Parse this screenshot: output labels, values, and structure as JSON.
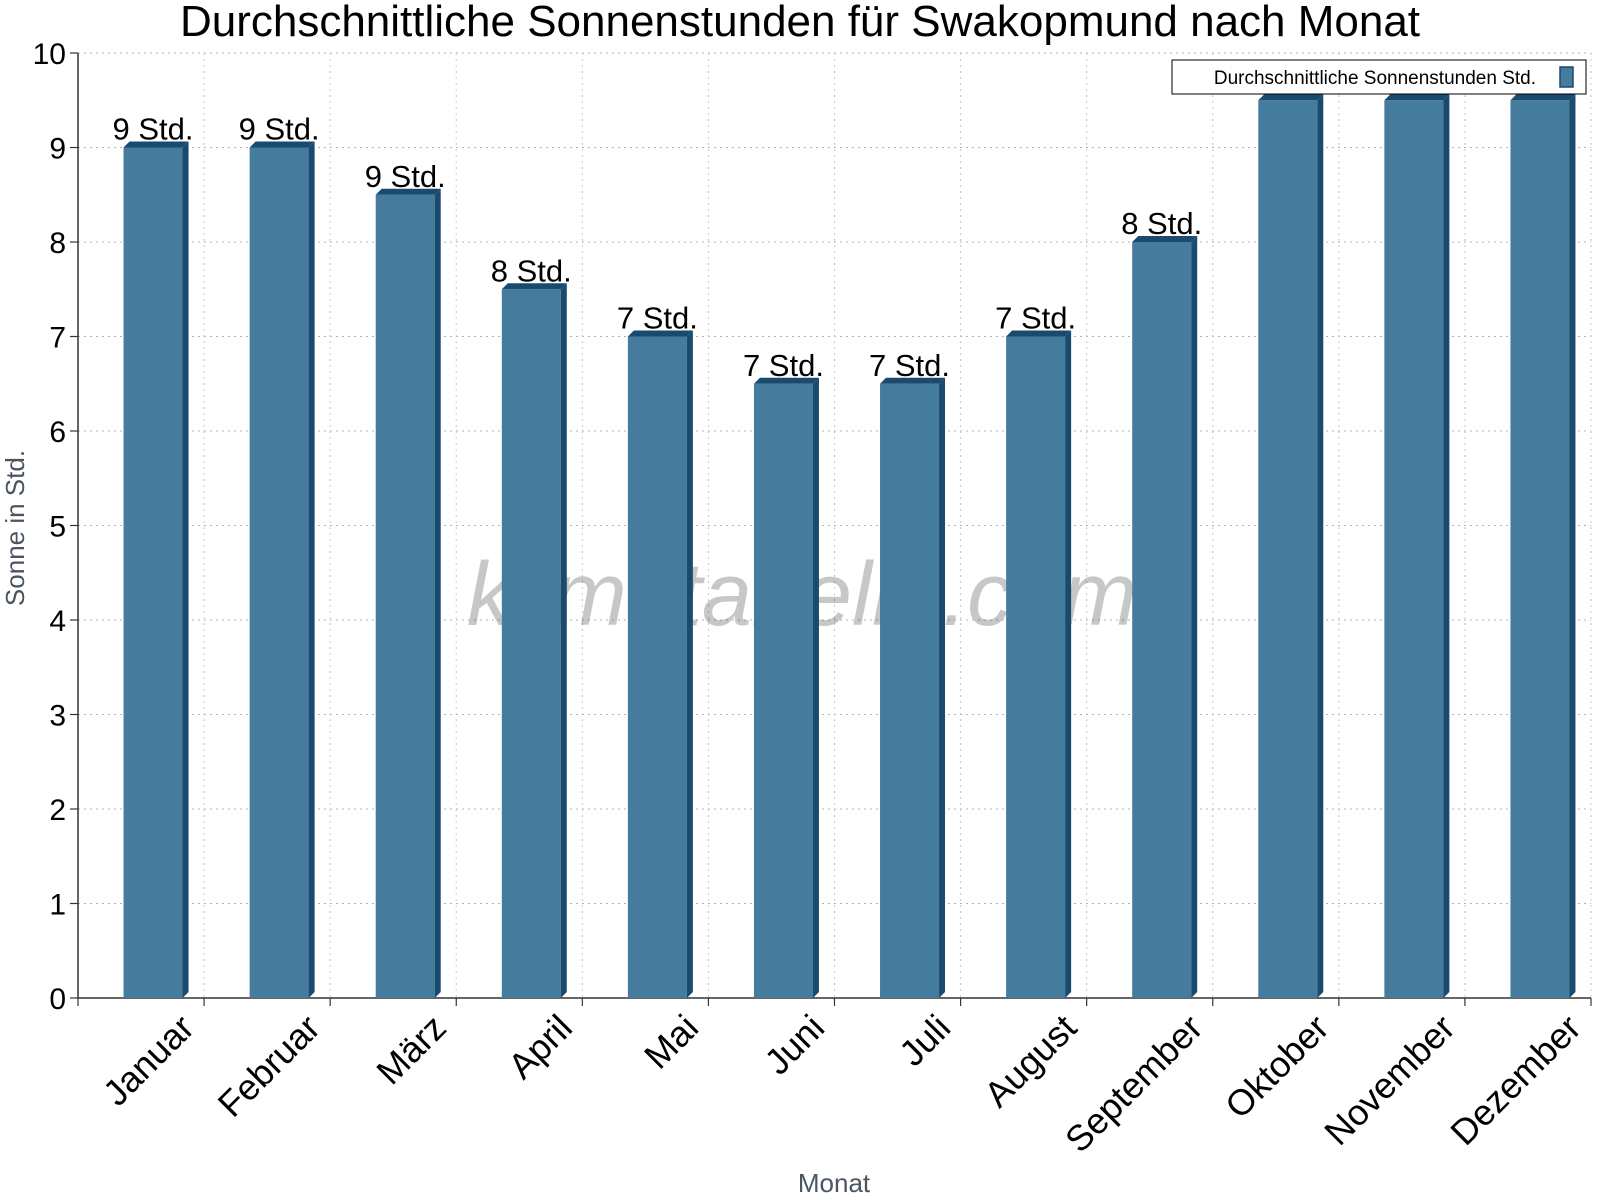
{
  "chart_data": {
    "type": "bar",
    "title": "Durchschnittliche Sonnenstunden für Swakopmund nach Monat",
    "xlabel": "Monat",
    "ylabel": "Sonne in Std.",
    "ylim": [
      0,
      10
    ],
    "yticks": [
      "0",
      "1",
      "2",
      "3",
      "4",
      "5",
      "6",
      "7",
      "8",
      "9",
      "10"
    ],
    "grid": true,
    "legend_position": "top-right",
    "categories": [
      "Januar",
      "Februar",
      "März",
      "April",
      "Mai",
      "Juni",
      "Juli",
      "August",
      "September",
      "Oktober",
      "November",
      "Dezember"
    ],
    "series": [
      {
        "name": "Durchschnittliche Sonnenstunden Std.",
        "values": [
          9,
          9,
          8.5,
          7.5,
          7,
          6.5,
          6.5,
          7,
          8,
          9.5,
          9.5,
          9.5
        ],
        "labels": [
          "9 Std.",
          "9 Std.",
          "9 Std.",
          "8 Std.",
          "7 Std.",
          "7 Std.",
          "7 Std.",
          "7 Std.",
          "8 Std.",
          "",
          "",
          ""
        ],
        "color": "#457b9d",
        "edge_color": "#1a4a6e"
      }
    ]
  },
  "watermark": "klimatabelle.com"
}
